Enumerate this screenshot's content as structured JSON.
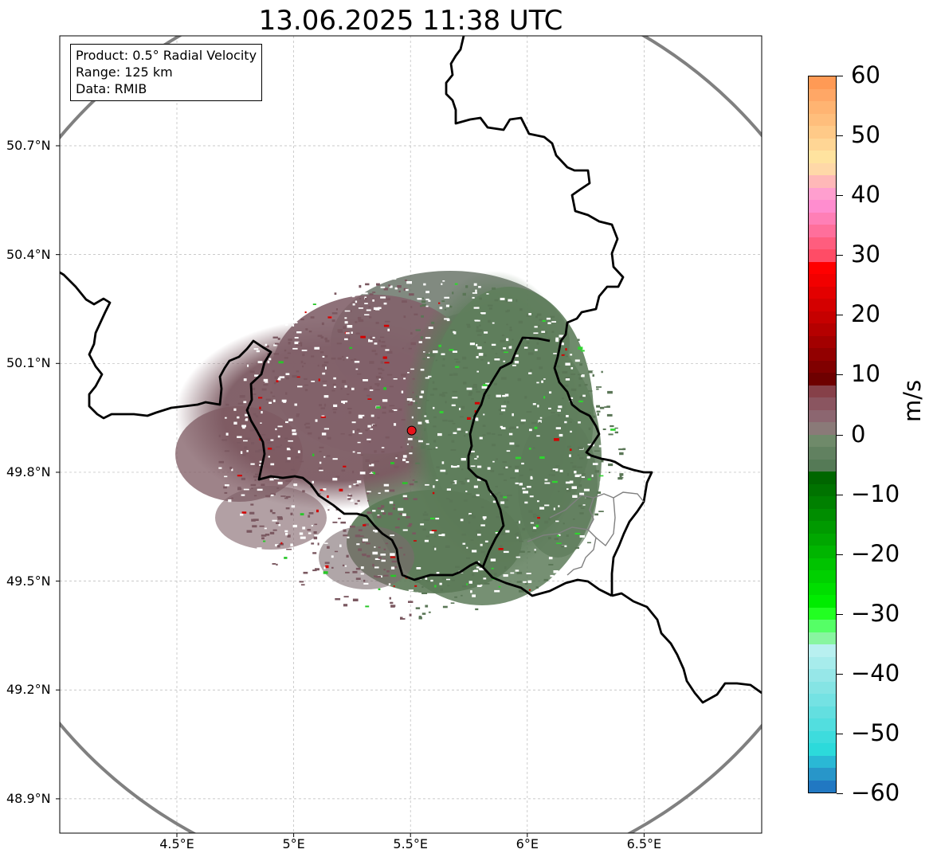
{
  "title": "13.06.2025 11:38 UTC",
  "info": {
    "product": "Product: 0.5° Radial Velocity",
    "range": "Range: 125 km",
    "data": "Data: RMIB"
  },
  "axes": {
    "lat_ticks": [
      {
        "value": 50.7,
        "label": "50.7°N"
      },
      {
        "value": 50.4,
        "label": "50.4°N"
      },
      {
        "value": 50.1,
        "label": "50.1°N"
      },
      {
        "value": 49.8,
        "label": "49.8°N"
      },
      {
        "value": 49.5,
        "label": "49.5°N"
      },
      {
        "value": 49.2,
        "label": "49.2°N"
      },
      {
        "value": 48.9,
        "label": "48.9°N"
      }
    ],
    "lon_ticks": [
      {
        "value": 4.5,
        "label": "4.5°E"
      },
      {
        "value": 5.0,
        "label": "5°E"
      },
      {
        "value": 5.5,
        "label": "5.5°E"
      },
      {
        "value": 6.0,
        "label": "6°E"
      },
      {
        "value": 6.5,
        "label": "6.5°E"
      }
    ],
    "lon_range": [
      4.0,
      7.0
    ],
    "lat_range": [
      48.8,
      51.0
    ],
    "grid": true
  },
  "radar": {
    "site_lon": 5.505,
    "site_lat": 49.915,
    "range_km": 125,
    "site_marker_color": "#e8141b"
  },
  "colorbar": {
    "unit": "m/s",
    "min": -60,
    "max": 60,
    "ticks": [
      {
        "value": 60,
        "label": "60"
      },
      {
        "value": 50,
        "label": "50"
      },
      {
        "value": 40,
        "label": "40"
      },
      {
        "value": 30,
        "label": "30"
      },
      {
        "value": 20,
        "label": "20"
      },
      {
        "value": 10,
        "label": "10"
      },
      {
        "value": 0,
        "label": "0"
      },
      {
        "value": -10,
        "label": "−10"
      },
      {
        "value": -20,
        "label": "−20"
      },
      {
        "value": -30,
        "label": "−30"
      },
      {
        "value": -40,
        "label": "−40"
      },
      {
        "value": -50,
        "label": "−50"
      },
      {
        "value": -60,
        "label": "−60"
      }
    ],
    "colors_top_to_bottom": [
      "#ff9a55",
      "#ffa766",
      "#ffb472",
      "#ffbe7c",
      "#ffca88",
      "#ffd695",
      "#ffe39f",
      "#ffd8a8",
      "#ffb8b8",
      "#ff9fcf",
      "#ff8dcf",
      "#ff7fb6",
      "#ff6f9b",
      "#ff5d7e",
      "#ff4c66",
      "#ff0000",
      "#f20000",
      "#e30000",
      "#d40000",
      "#c60000",
      "#b50000",
      "#a30000",
      "#920000",
      "#800000",
      "#6e0000",
      "#864049",
      "#8a5560",
      "#8c6670",
      "#8a7a78",
      "#6f8a6a",
      "#618160",
      "#557a56",
      "#006600",
      "#007300",
      "#008000",
      "#008d00",
      "#009a00",
      "#00a700",
      "#00b500",
      "#00c300",
      "#00d000",
      "#00de00",
      "#00ec00",
      "#22ff22",
      "#55ff66",
      "#88f5a0",
      "#b8f0f0",
      "#a7ecec",
      "#96e7e8",
      "#85e4e4",
      "#74e2e3",
      "#63dfe0",
      "#52dedf",
      "#3ddcdd",
      "#2cdadb",
      "#2ab8d5",
      "#2896c9",
      "#2178c2"
    ]
  },
  "colors": {
    "approaching_green": "#5f7d5c",
    "receding_mauve": "#7f5f66",
    "border": "#000000",
    "range_ring": "#808080",
    "grid": "#b0b0b0"
  }
}
